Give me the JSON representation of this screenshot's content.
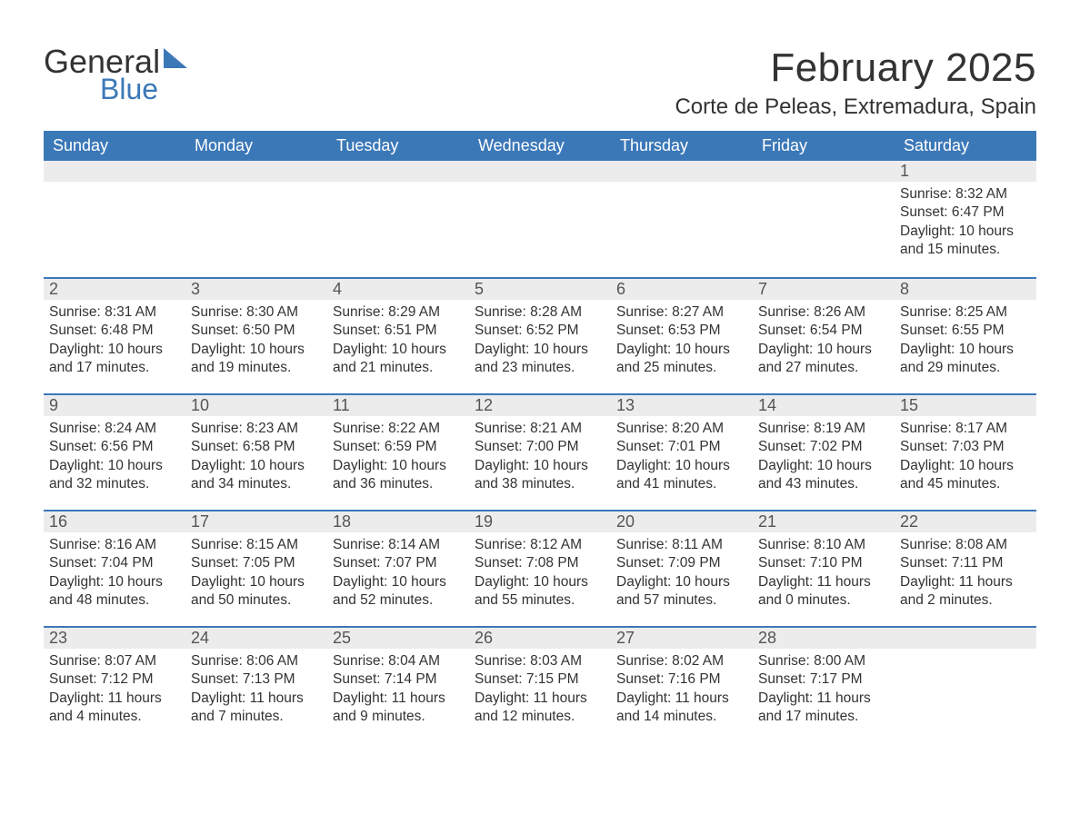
{
  "logo": {
    "line1": "General",
    "line2": "Blue"
  },
  "title": "February 2025",
  "location": "Corte de Peleas, Extremadura, Spain",
  "colors": {
    "header_bg": "#3b78b8",
    "header_text": "#ffffff",
    "daynum_bg": "#ececec",
    "cell_border": "#3b78b8",
    "body_text": "#333333"
  },
  "columns": [
    "Sunday",
    "Monday",
    "Tuesday",
    "Wednesday",
    "Thursday",
    "Friday",
    "Saturday"
  ],
  "weeks": [
    [
      null,
      null,
      null,
      null,
      null,
      null,
      {
        "n": "1",
        "sunrise": "Sunrise: 8:32 AM",
        "sunset": "Sunset: 6:47 PM",
        "daylight": "Daylight: 10 hours and 15 minutes."
      }
    ],
    [
      {
        "n": "2",
        "sunrise": "Sunrise: 8:31 AM",
        "sunset": "Sunset: 6:48 PM",
        "daylight": "Daylight: 10 hours and 17 minutes."
      },
      {
        "n": "3",
        "sunrise": "Sunrise: 8:30 AM",
        "sunset": "Sunset: 6:50 PM",
        "daylight": "Daylight: 10 hours and 19 minutes."
      },
      {
        "n": "4",
        "sunrise": "Sunrise: 8:29 AM",
        "sunset": "Sunset: 6:51 PM",
        "daylight": "Daylight: 10 hours and 21 minutes."
      },
      {
        "n": "5",
        "sunrise": "Sunrise: 8:28 AM",
        "sunset": "Sunset: 6:52 PM",
        "daylight": "Daylight: 10 hours and 23 minutes."
      },
      {
        "n": "6",
        "sunrise": "Sunrise: 8:27 AM",
        "sunset": "Sunset: 6:53 PM",
        "daylight": "Daylight: 10 hours and 25 minutes."
      },
      {
        "n": "7",
        "sunrise": "Sunrise: 8:26 AM",
        "sunset": "Sunset: 6:54 PM",
        "daylight": "Daylight: 10 hours and 27 minutes."
      },
      {
        "n": "8",
        "sunrise": "Sunrise: 8:25 AM",
        "sunset": "Sunset: 6:55 PM",
        "daylight": "Daylight: 10 hours and 29 minutes."
      }
    ],
    [
      {
        "n": "9",
        "sunrise": "Sunrise: 8:24 AM",
        "sunset": "Sunset: 6:56 PM",
        "daylight": "Daylight: 10 hours and 32 minutes."
      },
      {
        "n": "10",
        "sunrise": "Sunrise: 8:23 AM",
        "sunset": "Sunset: 6:58 PM",
        "daylight": "Daylight: 10 hours and 34 minutes."
      },
      {
        "n": "11",
        "sunrise": "Sunrise: 8:22 AM",
        "sunset": "Sunset: 6:59 PM",
        "daylight": "Daylight: 10 hours and 36 minutes."
      },
      {
        "n": "12",
        "sunrise": "Sunrise: 8:21 AM",
        "sunset": "Sunset: 7:00 PM",
        "daylight": "Daylight: 10 hours and 38 minutes."
      },
      {
        "n": "13",
        "sunrise": "Sunrise: 8:20 AM",
        "sunset": "Sunset: 7:01 PM",
        "daylight": "Daylight: 10 hours and 41 minutes."
      },
      {
        "n": "14",
        "sunrise": "Sunrise: 8:19 AM",
        "sunset": "Sunset: 7:02 PM",
        "daylight": "Daylight: 10 hours and 43 minutes."
      },
      {
        "n": "15",
        "sunrise": "Sunrise: 8:17 AM",
        "sunset": "Sunset: 7:03 PM",
        "daylight": "Daylight: 10 hours and 45 minutes."
      }
    ],
    [
      {
        "n": "16",
        "sunrise": "Sunrise: 8:16 AM",
        "sunset": "Sunset: 7:04 PM",
        "daylight": "Daylight: 10 hours and 48 minutes."
      },
      {
        "n": "17",
        "sunrise": "Sunrise: 8:15 AM",
        "sunset": "Sunset: 7:05 PM",
        "daylight": "Daylight: 10 hours and 50 minutes."
      },
      {
        "n": "18",
        "sunrise": "Sunrise: 8:14 AM",
        "sunset": "Sunset: 7:07 PM",
        "daylight": "Daylight: 10 hours and 52 minutes."
      },
      {
        "n": "19",
        "sunrise": "Sunrise: 8:12 AM",
        "sunset": "Sunset: 7:08 PM",
        "daylight": "Daylight: 10 hours and 55 minutes."
      },
      {
        "n": "20",
        "sunrise": "Sunrise: 8:11 AM",
        "sunset": "Sunset: 7:09 PM",
        "daylight": "Daylight: 10 hours and 57 minutes."
      },
      {
        "n": "21",
        "sunrise": "Sunrise: 8:10 AM",
        "sunset": "Sunset: 7:10 PM",
        "daylight": "Daylight: 11 hours and 0 minutes."
      },
      {
        "n": "22",
        "sunrise": "Sunrise: 8:08 AM",
        "sunset": "Sunset: 7:11 PM",
        "daylight": "Daylight: 11 hours and 2 minutes."
      }
    ],
    [
      {
        "n": "23",
        "sunrise": "Sunrise: 8:07 AM",
        "sunset": "Sunset: 7:12 PM",
        "daylight": "Daylight: 11 hours and 4 minutes."
      },
      {
        "n": "24",
        "sunrise": "Sunrise: 8:06 AM",
        "sunset": "Sunset: 7:13 PM",
        "daylight": "Daylight: 11 hours and 7 minutes."
      },
      {
        "n": "25",
        "sunrise": "Sunrise: 8:04 AM",
        "sunset": "Sunset: 7:14 PM",
        "daylight": "Daylight: 11 hours and 9 minutes."
      },
      {
        "n": "26",
        "sunrise": "Sunrise: 8:03 AM",
        "sunset": "Sunset: 7:15 PM",
        "daylight": "Daylight: 11 hours and 12 minutes."
      },
      {
        "n": "27",
        "sunrise": "Sunrise: 8:02 AM",
        "sunset": "Sunset: 7:16 PM",
        "daylight": "Daylight: 11 hours and 14 minutes."
      },
      {
        "n": "28",
        "sunrise": "Sunrise: 8:00 AM",
        "sunset": "Sunset: 7:17 PM",
        "daylight": "Daylight: 11 hours and 17 minutes."
      },
      null
    ]
  ]
}
